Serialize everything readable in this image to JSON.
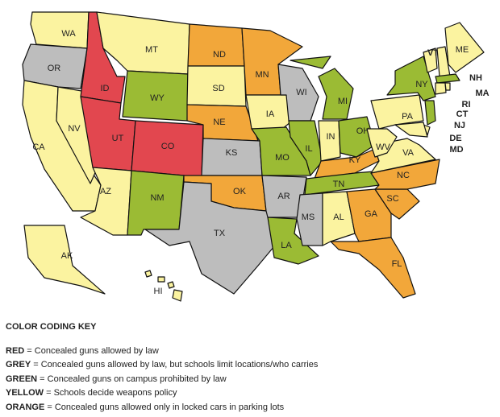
{
  "states": [
    {
      "label": "WA",
      "category": "YELLOW"
    },
    {
      "label": "OR",
      "category": "GREY"
    },
    {
      "label": "CA",
      "category": "YELLOW"
    },
    {
      "label": "NV",
      "category": "YELLOW"
    },
    {
      "label": "ID",
      "category": "RED"
    },
    {
      "label": "MT",
      "category": "YELLOW"
    },
    {
      "label": "WY",
      "category": "GREEN"
    },
    {
      "label": "UT",
      "category": "RED"
    },
    {
      "label": "CO",
      "category": "RED"
    },
    {
      "label": "AZ",
      "category": "YELLOW"
    },
    {
      "label": "NM",
      "category": "GREEN"
    },
    {
      "label": "ND",
      "category": "ORANGE"
    },
    {
      "label": "SD",
      "category": "YELLOW"
    },
    {
      "label": "NE",
      "category": "ORANGE"
    },
    {
      "label": "KS",
      "category": "GREY"
    },
    {
      "label": "OK",
      "category": "ORANGE"
    },
    {
      "label": "TX",
      "category": "GREY"
    },
    {
      "label": "MN",
      "category": "ORANGE"
    },
    {
      "label": "IA",
      "category": "YELLOW"
    },
    {
      "label": "MO",
      "category": "GREEN"
    },
    {
      "label": "AR",
      "category": "GREY"
    },
    {
      "label": "LA",
      "category": "GREEN"
    },
    {
      "label": "WI",
      "category": "GREY"
    },
    {
      "label": "IL",
      "category": "GREEN"
    },
    {
      "label": "MI",
      "category": "GREEN"
    },
    {
      "label": "IN",
      "category": "YELLOW"
    },
    {
      "label": "OH",
      "category": "GREEN"
    },
    {
      "label": "KY",
      "category": "ORANGE"
    },
    {
      "label": "TN",
      "category": "GREEN"
    },
    {
      "label": "MS",
      "category": "GREY"
    },
    {
      "label": "AL",
      "category": "YELLOW"
    },
    {
      "label": "GA",
      "category": "ORANGE"
    },
    {
      "label": "FL",
      "category": "ORANGE"
    },
    {
      "label": "SC",
      "category": "ORANGE"
    },
    {
      "label": "NC",
      "category": "ORANGE"
    },
    {
      "label": "VA",
      "category": "YELLOW"
    },
    {
      "label": "WV",
      "category": "YELLOW"
    },
    {
      "label": "PA",
      "category": "YELLOW"
    },
    {
      "label": "NY",
      "category": "GREEN"
    },
    {
      "label": "VT",
      "category": "YELLOW"
    },
    {
      "label": "NH",
      "category": "YELLOW"
    },
    {
      "label": "ME",
      "category": "YELLOW"
    },
    {
      "label": "MA",
      "category": "GREEN"
    },
    {
      "label": "CT",
      "category": "YELLOW"
    },
    {
      "label": "RI",
      "category": "YELLOW"
    },
    {
      "label": "NJ",
      "category": "GREEN"
    },
    {
      "label": "DE",
      "category": "YELLOW"
    },
    {
      "label": "MD",
      "category": "YELLOW"
    },
    {
      "label": "AK",
      "category": "YELLOW"
    },
    {
      "label": "HI",
      "category": "YELLOW"
    }
  ],
  "key": {
    "title": "COLOR CODING KEY",
    "items": [
      {
        "term": "RED",
        "text": " = Concealed guns allowed by law",
        "color": "#e2474f"
      },
      {
        "term": "GREY",
        "text": " = Concealed guns allowed by law, but schools limit locations/who carries",
        "color": "#bdbdbd"
      },
      {
        "term": "GREEN",
        "text": " = Concealed guns on campus prohibited by law",
        "color": "#9bbb34"
      },
      {
        "term": "YELLOW",
        "text": " = Schools decide weapons policy",
        "color": "#fbf3a0"
      },
      {
        "term": "ORANGE",
        "text": " = Concealed guns allowed only in locked cars in parking lots",
        "color": "#f2a73a"
      }
    ]
  }
}
